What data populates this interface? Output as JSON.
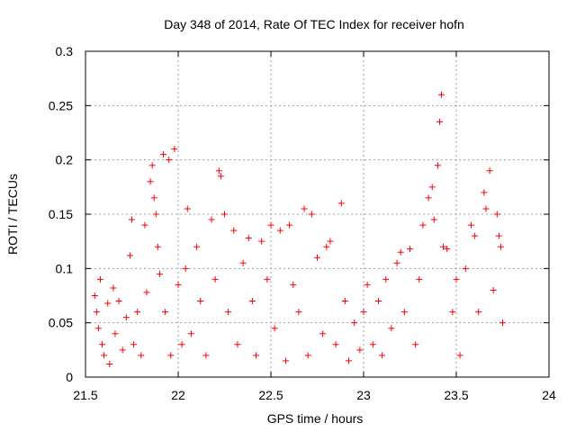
{
  "chart_data": {
    "type": "scatter",
    "title": "Day 348 of 2014, Rate Of TEC Index for receiver hofn",
    "xlabel": "GPS time / hours",
    "ylabel": "ROTI / TECUs",
    "xlim": [
      21.5,
      24
    ],
    "ylim": [
      0,
      0.3
    ],
    "xticks": [
      21.5,
      22,
      22.5,
      23,
      23.5,
      24
    ],
    "xtick_labels": [
      "21.5",
      "22",
      "22.5",
      "23",
      "23.5",
      "24"
    ],
    "yticks": [
      0,
      0.05,
      0.1,
      0.15,
      0.2,
      0.25,
      0.3
    ],
    "ytick_labels": [
      "0",
      "0.05",
      "0.1",
      "0.15",
      "0.2",
      "0.25",
      "0.3"
    ],
    "grid": true,
    "marker": "plus",
    "series": [
      {
        "name": "ROTI",
        "color": "#ff0000",
        "points": [
          [
            21.55,
            0.075
          ],
          [
            21.56,
            0.06
          ],
          [
            21.57,
            0.045
          ],
          [
            21.58,
            0.09
          ],
          [
            21.59,
            0.03
          ],
          [
            21.6,
            0.02
          ],
          [
            21.62,
            0.068
          ],
          [
            21.63,
            0.012
          ],
          [
            21.65,
            0.082
          ],
          [
            21.66,
            0.04
          ],
          [
            21.68,
            0.07
          ],
          [
            21.7,
            0.025
          ],
          [
            21.72,
            0.055
          ],
          [
            21.74,
            0.112
          ],
          [
            21.75,
            0.145
          ],
          [
            21.76,
            0.03
          ],
          [
            21.78,
            0.06
          ],
          [
            21.8,
            0.02
          ],
          [
            21.82,
            0.14
          ],
          [
            21.83,
            0.078
          ],
          [
            21.85,
            0.18
          ],
          [
            21.86,
            0.195
          ],
          [
            21.87,
            0.165
          ],
          [
            21.88,
            0.15
          ],
          [
            21.89,
            0.12
          ],
          [
            21.9,
            0.095
          ],
          [
            21.92,
            0.205
          ],
          [
            21.93,
            0.06
          ],
          [
            21.95,
            0.2
          ],
          [
            21.96,
            0.02
          ],
          [
            21.98,
            0.21
          ],
          [
            22.0,
            0.085
          ],
          [
            22.02,
            0.03
          ],
          [
            22.04,
            0.1
          ],
          [
            22.05,
            0.155
          ],
          [
            22.07,
            0.04
          ],
          [
            22.1,
            0.12
          ],
          [
            22.12,
            0.07
          ],
          [
            22.15,
            0.02
          ],
          [
            22.18,
            0.145
          ],
          [
            22.2,
            0.09
          ],
          [
            22.22,
            0.19
          ],
          [
            22.23,
            0.185
          ],
          [
            22.25,
            0.15
          ],
          [
            22.27,
            0.06
          ],
          [
            22.3,
            0.135
          ],
          [
            22.32,
            0.03
          ],
          [
            22.35,
            0.105
          ],
          [
            22.38,
            0.128
          ],
          [
            22.4,
            0.07
          ],
          [
            22.42,
            0.02
          ],
          [
            22.45,
            0.125
          ],
          [
            22.48,
            0.09
          ],
          [
            22.5,
            0.14
          ],
          [
            22.52,
            0.045
          ],
          [
            22.55,
            0.135
          ],
          [
            22.58,
            0.015
          ],
          [
            22.6,
            0.14
          ],
          [
            22.62,
            0.085
          ],
          [
            22.65,
            0.06
          ],
          [
            22.68,
            0.155
          ],
          [
            22.7,
            0.02
          ],
          [
            22.72,
            0.15
          ],
          [
            22.75,
            0.11
          ],
          [
            22.78,
            0.04
          ],
          [
            22.8,
            0.12
          ],
          [
            22.82,
            0.125
          ],
          [
            22.85,
            0.03
          ],
          [
            22.88,
            0.16
          ],
          [
            22.9,
            0.07
          ],
          [
            22.92,
            0.015
          ],
          [
            22.95,
            0.05
          ],
          [
            22.98,
            0.025
          ],
          [
            23.0,
            0.06
          ],
          [
            23.02,
            0.085
          ],
          [
            23.05,
            0.03
          ],
          [
            23.08,
            0.07
          ],
          [
            23.1,
            0.02
          ],
          [
            23.12,
            0.09
          ],
          [
            23.15,
            0.045
          ],
          [
            23.18,
            0.105
          ],
          [
            23.2,
            0.115
          ],
          [
            23.22,
            0.06
          ],
          [
            23.25,
            0.118
          ],
          [
            23.28,
            0.03
          ],
          [
            23.3,
            0.09
          ],
          [
            23.32,
            0.14
          ],
          [
            23.35,
            0.165
          ],
          [
            23.37,
            0.175
          ],
          [
            23.38,
            0.145
          ],
          [
            23.4,
            0.195
          ],
          [
            23.41,
            0.235
          ],
          [
            23.42,
            0.26
          ],
          [
            23.43,
            0.12
          ],
          [
            23.45,
            0.118
          ],
          [
            23.48,
            0.06
          ],
          [
            23.5,
            0.09
          ],
          [
            23.52,
            0.02
          ],
          [
            23.55,
            0.1
          ],
          [
            23.58,
            0.14
          ],
          [
            23.6,
            0.13
          ],
          [
            23.62,
            0.06
          ],
          [
            23.65,
            0.17
          ],
          [
            23.66,
            0.155
          ],
          [
            23.68,
            0.19
          ],
          [
            23.7,
            0.08
          ],
          [
            23.72,
            0.15
          ],
          [
            23.73,
            0.13
          ],
          [
            23.74,
            0.12
          ],
          [
            23.75,
            0.05
          ]
        ]
      }
    ]
  }
}
